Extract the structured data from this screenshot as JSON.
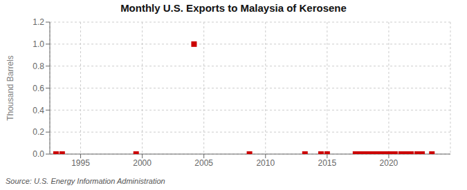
{
  "chart_data": {
    "type": "scatter",
    "title": "Monthly U.S. Exports to Malaysia of Kerosene",
    "ylabel": "Thousand Barrels",
    "source": "Source: U.S. Energy Information Administration",
    "x": [
      1993.0,
      1993.5,
      1999.5,
      2004.2,
      2008.7,
      2013.2,
      2014.5,
      2015.0,
      2017.3,
      2017.7,
      2018.0,
      2018.4,
      2018.8,
      2019.2,
      2019.5,
      2019.9,
      2020.2,
      2020.5,
      2021.0,
      2021.4,
      2021.8,
      2022.3,
      2022.7,
      2023.5
    ],
    "values": [
      0.0,
      0.0,
      0.0,
      1.0,
      0.0,
      0.0,
      0.0,
      0.0,
      0.0,
      0.0,
      0.0,
      0.0,
      0.0,
      0.0,
      0.0,
      0.0,
      0.0,
      0.0,
      0.0,
      0.0,
      0.0,
      0.0,
      0.0,
      0.0
    ],
    "color": "#cc0000",
    "marker": "square",
    "xlim": [
      1992.5,
      2025.0
    ],
    "xticks": [
      1995,
      2000,
      2005,
      2010,
      2015,
      2020
    ],
    "ylim": [
      0.0,
      1.2
    ],
    "yticks": [
      {
        "value": 0,
        "label": "0.0"
      },
      0.2,
      0.4,
      0.6,
      0.8,
      {
        "value": 1,
        "label": "1.0"
      },
      1.2
    ],
    "grid": true
  }
}
